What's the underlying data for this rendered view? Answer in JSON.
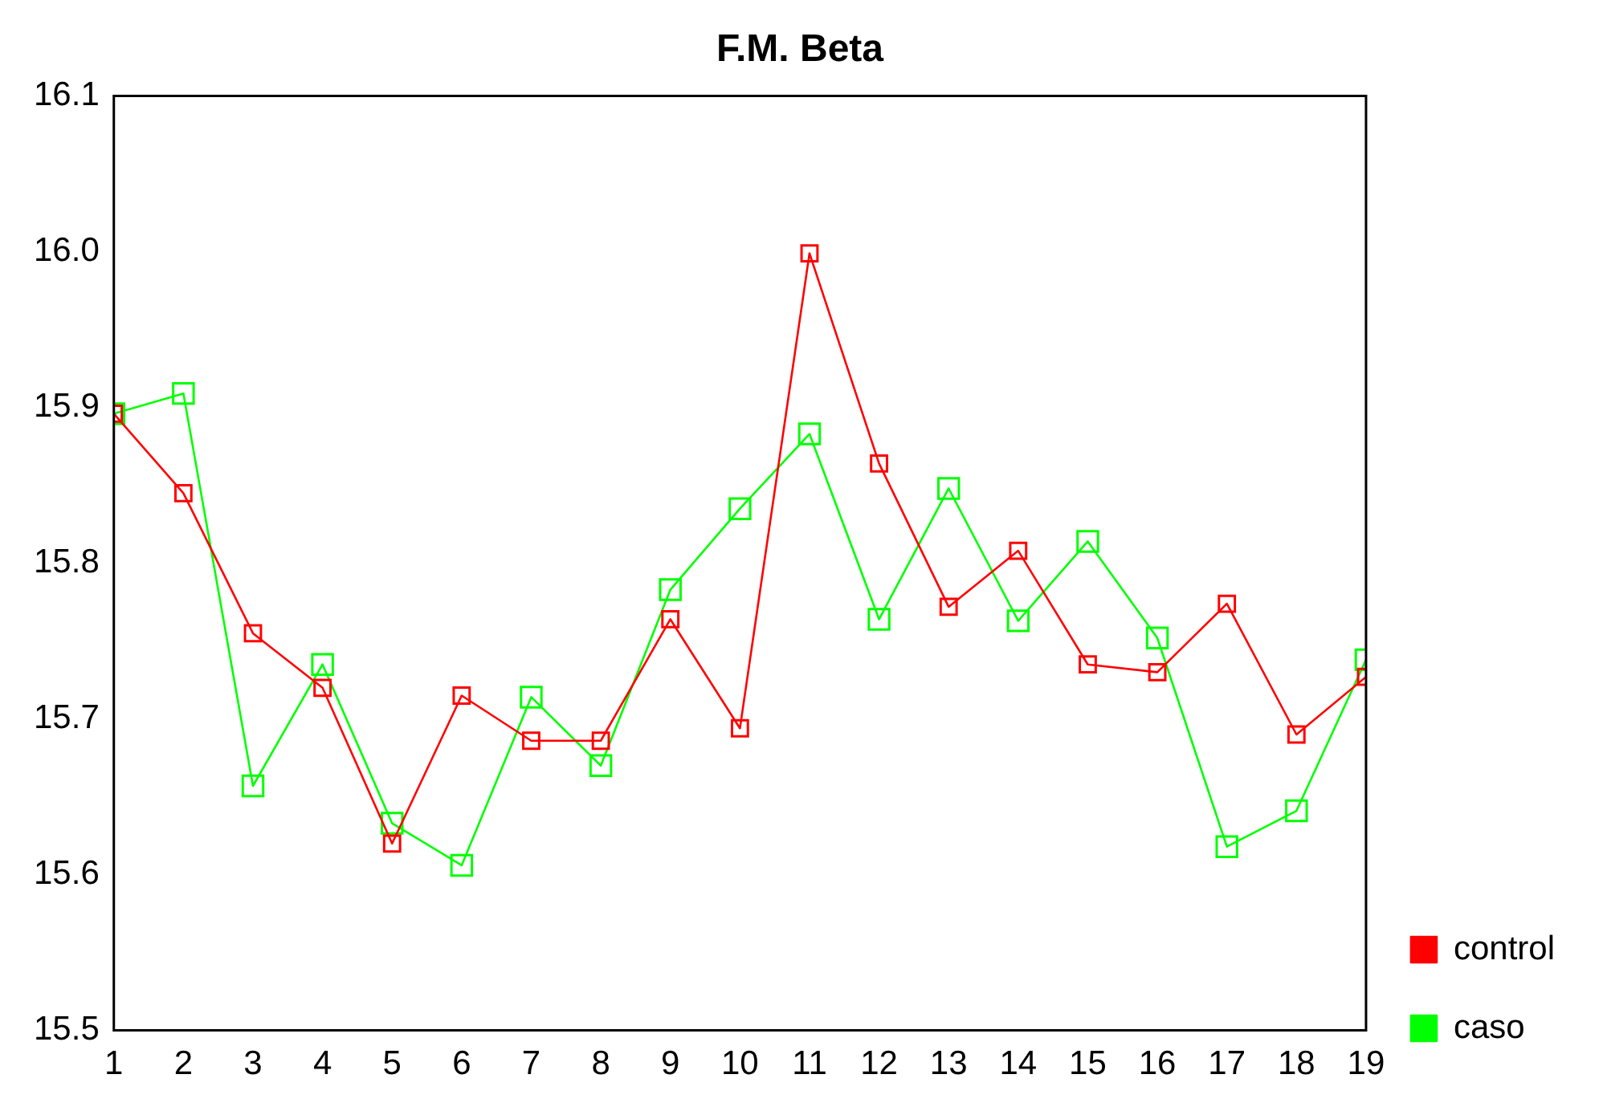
{
  "chart_data": {
    "type": "line",
    "title": "F.M. Beta",
    "x": [
      1,
      2,
      3,
      4,
      5,
      6,
      7,
      8,
      9,
      10,
      11,
      12,
      13,
      14,
      15,
      16,
      17,
      18,
      19
    ],
    "series": [
      {
        "name": "control",
        "color": "#ff0000",
        "values": [
          15.896,
          15.845,
          15.755,
          15.72,
          15.62,
          15.715,
          15.686,
          15.686,
          15.764,
          15.694,
          15.999,
          15.864,
          15.772,
          15.808,
          15.735,
          15.73,
          15.774,
          15.69,
          15.727
        ]
      },
      {
        "name": "caso",
        "color": "#00ff00",
        "values": [
          15.896,
          15.909,
          15.657,
          15.735,
          15.633,
          15.606,
          15.714,
          15.67,
          15.783,
          15.835,
          15.883,
          15.764,
          15.848,
          15.763,
          15.814,
          15.752,
          15.618,
          15.641,
          15.738
        ]
      }
    ],
    "xlim": [
      1,
      19
    ],
    "xticks": [
      1,
      2,
      3,
      4,
      5,
      6,
      7,
      8,
      9,
      10,
      11,
      12,
      13,
      14,
      15,
      16,
      17,
      18,
      19
    ],
    "ylim": [
      15.5,
      16.1
    ],
    "yticks": [
      {
        "value": 15.5,
        "label": "15.5"
      },
      {
        "value": 15.6,
        "label": "15.6"
      },
      {
        "value": 15.7,
        "label": "15.7"
      },
      {
        "value": 15.8,
        "label": "15.8"
      },
      {
        "value": 15.9,
        "label": "15.9"
      },
      {
        "value": 16,
        "label": "16.0"
      },
      {
        "value": 16.1,
        "label": "16.1"
      }
    ],
    "grid": false,
    "legend": "right",
    "marker": "square",
    "line_style": "solid"
  }
}
